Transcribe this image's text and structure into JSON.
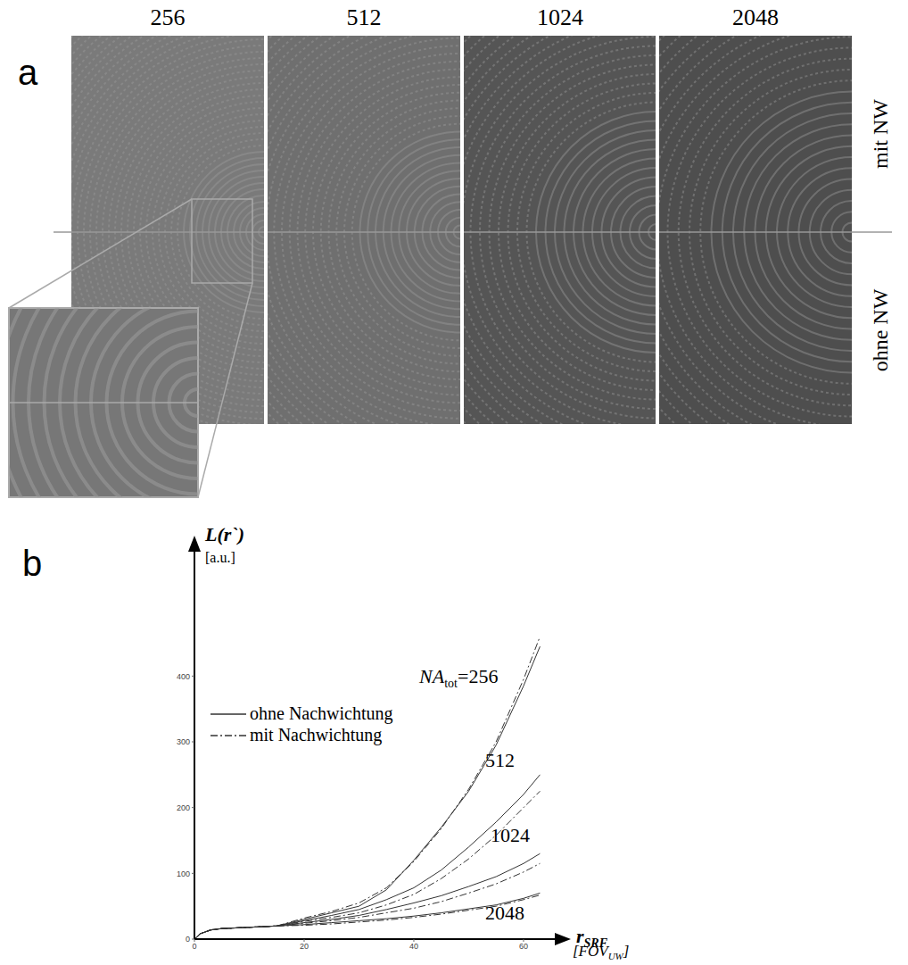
{
  "panel_a": {
    "letter": "a",
    "columns": [
      "256",
      "512",
      "1024",
      "2048"
    ],
    "rows": [
      "mit NW",
      "ohne NW"
    ]
  },
  "chart_data": {
    "letter": "b",
    "type": "line",
    "y_label": {
      "text": "L(r`)",
      "unit": "[a.u.]"
    },
    "x_label": {
      "text": "r",
      "sub": "SRF",
      "unit": "[FOV",
      "unit_sub": "UW",
      "unit_suffix": "]"
    },
    "x": [
      0,
      1,
      3,
      5,
      10,
      15,
      20,
      25,
      30,
      35,
      40,
      45,
      50,
      55,
      60,
      63
    ],
    "xlim": [
      0,
      67
    ],
    "xticks": [
      0,
      20,
      40,
      60
    ],
    "ylim": [
      0,
      600
    ],
    "yticks": [
      0,
      100,
      200,
      300,
      400
    ],
    "legend": "upper left",
    "series": [
      {
        "name": "ohne Nachwichtung",
        "line_style": "solid",
        "color": "#333333",
        "values": [
          0,
          8,
          14,
          16,
          18,
          20,
          30,
          40,
          50,
          75,
          120,
          170,
          225,
          295,
          385,
          445
        ]
      },
      {
        "name": "mit Nachwichtung",
        "line_style": "dashdot",
        "color": "#333333",
        "values": [
          0,
          8,
          14,
          16,
          18,
          20,
          32,
          42,
          55,
          78,
          118,
          168,
          228,
          300,
          395,
          460
        ]
      },
      {
        "name": "ohne Nachwichtung",
        "line_style": "solid",
        "color": "#333333",
        "values": [
          0,
          8,
          14,
          16,
          18,
          20,
          28,
          36,
          45,
          60,
          78,
          105,
          140,
          178,
          220,
          250
        ]
      },
      {
        "name": "mit Nachwichtung",
        "line_style": "dashdot",
        "color": "#333333",
        "values": [
          0,
          8,
          14,
          16,
          18,
          20,
          27,
          33,
          40,
          52,
          68,
          92,
          122,
          158,
          200,
          225
        ]
      },
      {
        "name": "ohne Nachwichtung",
        "line_style": "solid",
        "color": "#333333",
        "values": [
          0,
          8,
          14,
          16,
          18,
          20,
          25,
          30,
          36,
          45,
          55,
          66,
          80,
          95,
          115,
          130
        ]
      },
      {
        "name": "mit Nachwichtung",
        "line_style": "dashdot",
        "color": "#333333",
        "values": [
          0,
          8,
          14,
          16,
          18,
          20,
          24,
          28,
          33,
          40,
          47,
          57,
          70,
          84,
          102,
          115
        ]
      },
      {
        "name": "ohne Nachwichtung",
        "line_style": "solid",
        "color": "#333333",
        "values": [
          0,
          8,
          14,
          16,
          18,
          20,
          22,
          25,
          28,
          31,
          35,
          40,
          46,
          52,
          62,
          70
        ]
      },
      {
        "name": "mit Nachwichtung",
        "line_style": "dashdot",
        "color": "#333333",
        "values": [
          0,
          8,
          14,
          16,
          18,
          20,
          21,
          23,
          26,
          29,
          33,
          38,
          44,
          50,
          60,
          67
        ]
      }
    ],
    "annotations": [
      {
        "text": "NA",
        "sub": "tot",
        "suffix": "=256",
        "x": 41,
        "y": 390
      },
      {
        "text": "512",
        "x": 53,
        "y": 262
      },
      {
        "text": "1024",
        "x": 54,
        "y": 148
      },
      {
        "text": "2048",
        "x": 53,
        "y": 30
      }
    ]
  }
}
